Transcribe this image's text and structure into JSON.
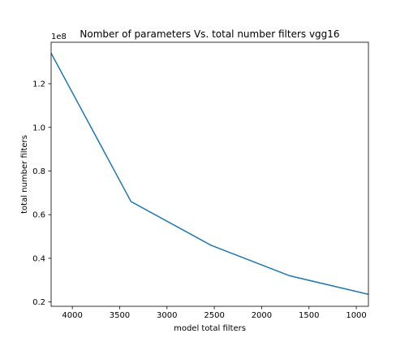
{
  "chart_data": {
    "type": "line",
    "title": "Nomber of parameters Vs. total number filters vgg16",
    "xlabel": "model total filters",
    "ylabel": "total number filters",
    "y_offset_text": "1e8",
    "x_inverted": true,
    "xlim": [
      4224,
      872
    ],
    "ylim": [
      0.18,
      1.39
    ],
    "x_ticks": [
      4000,
      3500,
      3000,
      2500,
      2000,
      1500,
      1000
    ],
    "x_tick_labels": [
      "4000",
      "3500",
      "3000",
      "2500",
      "2000",
      "1500",
      "1000"
    ],
    "y_ticks": [
      0.2,
      0.4,
      0.6,
      0.8,
      1.0,
      1.2
    ],
    "y_tick_labels": [
      "0.2",
      "0.4",
      "0.6",
      "0.8",
      "1.0",
      "1.2"
    ],
    "grid": false,
    "series": [
      {
        "x": [
          4224,
          3380,
          2536,
          1704,
          872
        ],
        "y": [
          1.34,
          0.66,
          0.46,
          0.32,
          0.235
        ]
      }
    ],
    "colors": {
      "line": "#1f77b4",
      "axes": "#000000",
      "background": "#ffffff"
    }
  }
}
